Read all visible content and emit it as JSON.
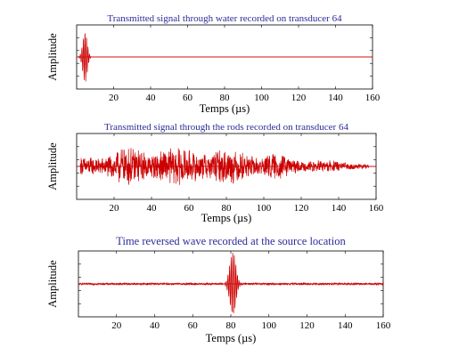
{
  "chart_data": [
    {
      "type": "line",
      "title": "Transmitted signal through water recorded on transducer 64",
      "xlabel": "Temps (µs)",
      "ylabel": "Amplitude",
      "xlim": [
        0,
        160
      ],
      "xticks": [
        20,
        40,
        60,
        80,
        100,
        120,
        140,
        160
      ],
      "grid": false,
      "color": "#cc0000",
      "signal": {
        "kind": "pulse",
        "center": 4.5,
        "width": 1.2,
        "peak": 1.0,
        "noise": 0.0,
        "ylim": [
          -1.3,
          1.3
        ]
      }
    },
    {
      "type": "line",
      "title": "Transmitted signal through the rods recorded on transducer 64",
      "xlabel": "Temps (µs)",
      "ylabel": "Amplitude",
      "xlim": [
        0,
        160
      ],
      "xticks": [
        20,
        40,
        60,
        80,
        100,
        120,
        140,
        160
      ],
      "grid": false,
      "color": "#cc0000",
      "signal": {
        "kind": "coda",
        "start": 2,
        "end": 156,
        "peak": 0.85,
        "noise": 0.0,
        "ylim": [
          -1.1,
          1.1
        ]
      }
    },
    {
      "type": "line",
      "title": "Time reversed wave recorded at the source location",
      "xlabel": "Temps (µs)",
      "ylabel": "Amplitude",
      "xlim": [
        0,
        160
      ],
      "xticks": [
        20,
        40,
        60,
        80,
        100,
        120,
        140,
        160
      ],
      "grid": false,
      "color": "#cc0000",
      "signal": {
        "kind": "pulse",
        "center": 81,
        "width": 1.6,
        "peak": 1.0,
        "noise": 0.03,
        "ylim": [
          -1.05,
          1.05
        ]
      }
    }
  ]
}
